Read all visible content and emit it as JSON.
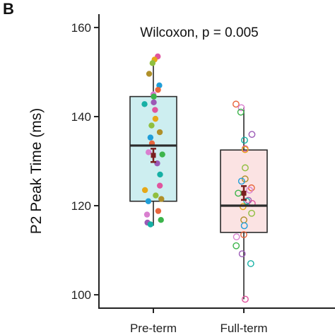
{
  "panel_label": "B",
  "colors": {
    "preterm_fill": "#cdeef0",
    "fullterm_fill": "#fbe3e3",
    "box_stroke": "#2b2b2b",
    "mean_marker": "#7a1f1f",
    "point_palette": [
      "#e0559e",
      "#3cb44b",
      "#1f9ed8",
      "#e6a817",
      "#9b59b6",
      "#e8663d",
      "#8fbf3f",
      "#16b0a5",
      "#d97fcf",
      "#b0902a"
    ]
  },
  "chart_data": {
    "type": "box",
    "title": "",
    "annotation": "Wilcoxon, p = 0.005",
    "xlabel": "",
    "ylabel": "P2 Peak Time (ms)",
    "ylim": [
      97,
      163
    ],
    "yticks": [
      100,
      120,
      140,
      160
    ],
    "categories": [
      "Pre-term",
      "Full-term"
    ],
    "series": [
      {
        "category": "Pre-term",
        "filled_points": true,
        "box": {
          "whisker_low": 115.5,
          "q1": 121,
          "median": 133.5,
          "q3": 144.5,
          "whisker_high": 153
        },
        "mean": 131.3,
        "mean_error": [
          129.8,
          132.8
        ],
        "points": [
          153.5,
          152.8,
          152,
          149.6,
          147,
          146,
          145,
          144.5,
          143.2,
          142.8,
          141.5,
          139.5,
          138,
          136.5,
          135.3,
          134,
          132,
          131.5,
          129.5,
          127,
          124.5,
          123.5,
          122.3,
          121.5,
          121,
          118.8,
          118,
          116.8,
          116.2,
          115.8
        ]
      },
      {
        "category": "Full-term",
        "filled_points": false,
        "box": {
          "whisker_low": 99,
          "q1": 114,
          "median": 120,
          "q3": 132.5,
          "whisker_high": 142
        },
        "mean": 122.8,
        "mean_error": [
          121.3,
          124.4
        ],
        "points": [
          142.8,
          142,
          141,
          136,
          134.7,
          132.8,
          132.6,
          128.5,
          126,
          125.5,
          124,
          123.5,
          122.8,
          121.2,
          121,
          120.5,
          119.8,
          118.3,
          116.8,
          115.5,
          113.5,
          113,
          111,
          109.2,
          107,
          99
        ]
      }
    ]
  }
}
